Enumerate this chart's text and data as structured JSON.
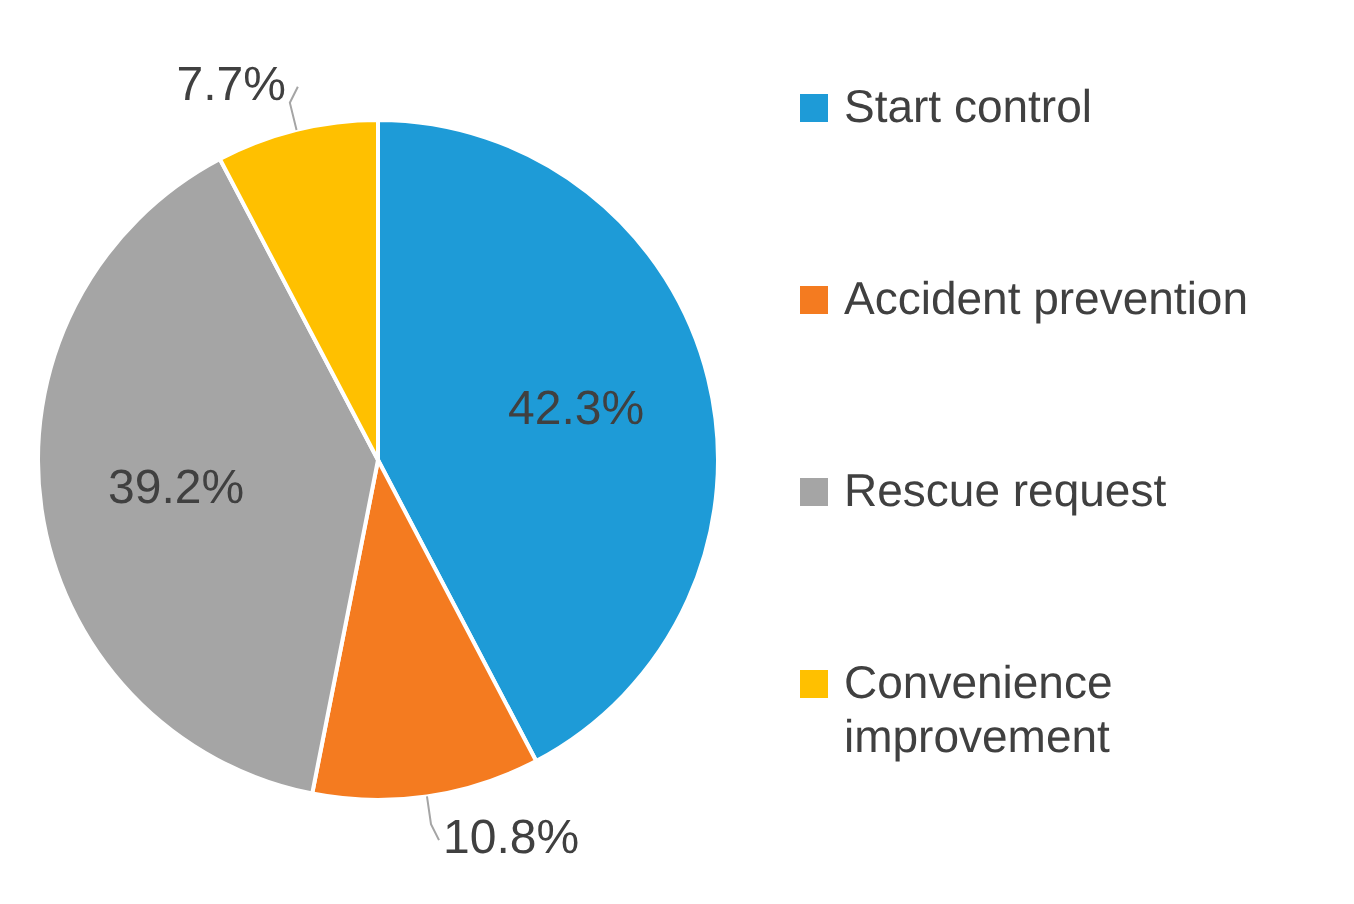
{
  "chart_data": {
    "type": "pie",
    "categories": [
      "Start control",
      "Accident prevention",
      "Rescue request",
      "Convenience improvement"
    ],
    "values": [
      42.3,
      10.8,
      39.2,
      7.7
    ],
    "colors": [
      "#1e9bd7",
      "#f47b20",
      "#a5a5a5",
      "#ffc000"
    ],
    "value_labels": [
      "42.3%",
      "10.8%",
      "39.2%",
      "7.7%"
    ],
    "legend": "right"
  }
}
